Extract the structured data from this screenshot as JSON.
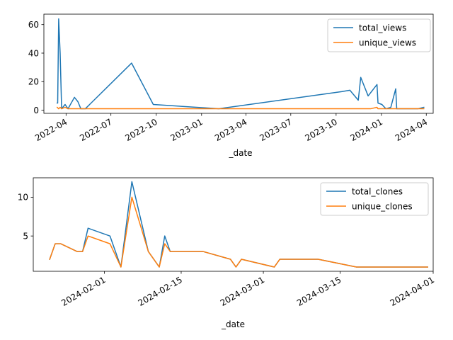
{
  "chart_data": [
    {
      "type": "line",
      "xlabel": "_date",
      "ylabel": "",
      "x_axis": "date",
      "xlim": [
        "2022-02-15",
        "2024-04-15"
      ],
      "ylim": [
        -2.2,
        67.3
      ],
      "yticks": [
        0,
        20,
        40,
        60
      ],
      "xticks": [
        "2022-04-01",
        "2022-07-01",
        "2022-10-01",
        "2023-01-01",
        "2023-04-01",
        "2023-07-01",
        "2023-10-01",
        "2024-01-01",
        "2024-04-01"
      ],
      "xtick_labels": [
        "2022-04",
        "2022-07",
        "2022-10",
        "2023-01",
        "2023-04",
        "2023-07",
        "2023-10",
        "2024-01",
        "2024-04"
      ],
      "legend_position": "top-right",
      "grid": false,
      "series": [
        {
          "name": "total_views",
          "color": "#1f77b4",
          "points": [
            [
              "2022-03-14",
              5
            ],
            [
              "2022-03-15",
              5
            ],
            [
              "2022-03-17",
              64
            ],
            [
              "2022-03-20",
              40
            ],
            [
              "2022-03-23",
              1
            ],
            [
              "2022-03-30",
              4
            ],
            [
              "2022-04-05",
              1
            ],
            [
              "2022-04-18",
              9
            ],
            [
              "2022-04-25",
              6
            ],
            [
              "2022-05-01",
              1
            ],
            [
              "2022-05-10",
              1
            ],
            [
              "2022-08-12",
              33
            ],
            [
              "2022-09-25",
              4
            ],
            [
              "2023-02-05",
              1
            ],
            [
              "2023-10-12",
              13
            ],
            [
              "2023-10-29",
              14
            ],
            [
              "2023-11-15",
              7
            ],
            [
              "2023-11-20",
              23
            ],
            [
              "2023-12-05",
              10
            ],
            [
              "2023-12-23",
              18
            ],
            [
              "2023-12-25",
              5
            ],
            [
              "2024-01-02",
              4
            ],
            [
              "2024-01-10",
              1
            ],
            [
              "2024-01-20",
              2
            ],
            [
              "2024-01-30",
              15
            ],
            [
              "2024-02-01",
              1
            ],
            [
              "2024-03-01",
              1
            ],
            [
              "2024-03-15",
              1
            ],
            [
              "2024-03-27",
              2
            ]
          ]
        },
        {
          "name": "unique_views",
          "color": "#ff7f0e",
          "points": [
            [
              "2022-03-14",
              2
            ],
            [
              "2022-03-17",
              1
            ],
            [
              "2022-03-20",
              2
            ],
            [
              "2022-03-23",
              1
            ],
            [
              "2022-03-30",
              2
            ],
            [
              "2022-04-05",
              1
            ],
            [
              "2022-08-12",
              1
            ],
            [
              "2023-02-05",
              1
            ],
            [
              "2023-12-10",
              1
            ],
            [
              "2023-12-23",
              2
            ],
            [
              "2023-12-25",
              1
            ],
            [
              "2024-03-27",
              1
            ]
          ]
        }
      ]
    },
    {
      "type": "line",
      "xlabel": "_date",
      "ylabel": "",
      "x_axis": "date",
      "xlim": [
        "2024-01-19",
        "2024-04-01"
      ],
      "ylim": [
        0.45,
        12.5
      ],
      "yticks": [
        5,
        10
      ],
      "xticks": [
        "2024-02-01",
        "2024-02-15",
        "2024-03-01",
        "2024-03-15",
        "2024-04-01"
      ],
      "xtick_labels": [
        "2024-02-01",
        "2024-02-15",
        "2024-03-01",
        "2024-03-15",
        "2024-04-01"
      ],
      "legend_position": "top-right",
      "grid": false,
      "series": [
        {
          "name": "total_clones",
          "color": "#1f77b4",
          "points": [
            [
              "2024-01-22",
              2
            ],
            [
              "2024-01-23",
              4
            ],
            [
              "2024-01-24",
              4
            ],
            [
              "2024-01-27",
              3
            ],
            [
              "2024-01-28",
              3
            ],
            [
              "2024-01-29",
              6
            ],
            [
              "2024-02-02",
              5
            ],
            [
              "2024-02-04",
              1
            ],
            [
              "2024-02-06",
              12
            ],
            [
              "2024-02-09",
              3
            ],
            [
              "2024-02-11",
              1
            ],
            [
              "2024-02-12",
              5
            ],
            [
              "2024-02-13",
              3
            ],
            [
              "2024-02-19",
              3
            ],
            [
              "2024-02-24",
              2
            ],
            [
              "2024-02-25",
              1
            ],
            [
              "2024-02-26",
              2
            ],
            [
              "2024-03-03",
              1
            ],
            [
              "2024-03-04",
              2
            ],
            [
              "2024-03-11",
              2
            ],
            [
              "2024-03-18",
              1
            ],
            [
              "2024-03-31",
              1
            ]
          ]
        },
        {
          "name": "unique_clones",
          "color": "#ff7f0e",
          "points": [
            [
              "2024-01-22",
              2
            ],
            [
              "2024-01-23",
              4
            ],
            [
              "2024-01-24",
              4
            ],
            [
              "2024-01-27",
              3
            ],
            [
              "2024-01-28",
              3
            ],
            [
              "2024-01-29",
              5
            ],
            [
              "2024-02-02",
              4
            ],
            [
              "2024-02-04",
              1
            ],
            [
              "2024-02-06",
              10
            ],
            [
              "2024-02-09",
              3
            ],
            [
              "2024-02-11",
              1
            ],
            [
              "2024-02-12",
              4
            ],
            [
              "2024-02-13",
              3
            ],
            [
              "2024-02-19",
              3
            ],
            [
              "2024-02-24",
              2
            ],
            [
              "2024-02-25",
              1
            ],
            [
              "2024-02-26",
              2
            ],
            [
              "2024-03-03",
              1
            ],
            [
              "2024-03-04",
              2
            ],
            [
              "2024-03-11",
              2
            ],
            [
              "2024-03-18",
              1
            ],
            [
              "2024-03-31",
              1
            ]
          ]
        }
      ]
    }
  ]
}
